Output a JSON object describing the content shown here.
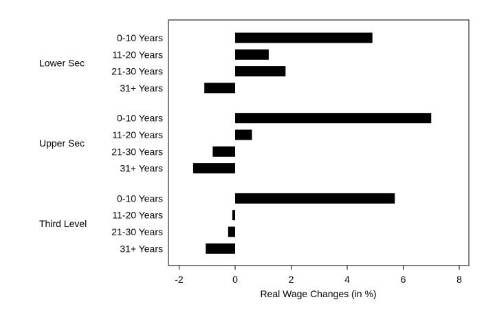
{
  "chart_data": {
    "type": "bar",
    "orientation": "horizontal",
    "xlabel": "Real Wage Changes (in %)",
    "xlim": [
      -2.4,
      8.4
    ],
    "xticks": [
      -2,
      0,
      2,
      4,
      6,
      8
    ],
    "grid": false,
    "groups": [
      {
        "name": "Lower Sec",
        "categories": [
          "0-10 Years",
          "11-20 Years",
          "21-30 Years",
          "31+ Years"
        ],
        "values": [
          4.9,
          1.2,
          1.8,
          -1.1
        ]
      },
      {
        "name": "Upper Sec",
        "categories": [
          "0-10 Years",
          "11-20 Years",
          "21-30 Years",
          "31+ Years"
        ],
        "values": [
          7.0,
          0.6,
          -0.8,
          -1.5
        ]
      },
      {
        "name": "Third Level",
        "categories": [
          "0-10 Years",
          "11-20 Years",
          "21-30 Years",
          "31+ Years"
        ],
        "values": [
          5.7,
          -0.1,
          -0.25,
          -1.05
        ]
      }
    ],
    "bar_color": "#000000"
  }
}
